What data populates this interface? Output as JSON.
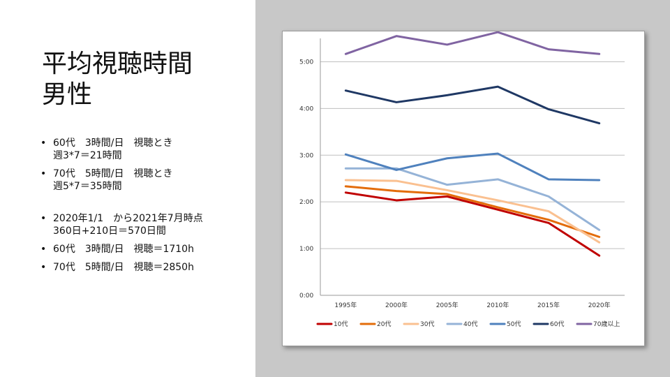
{
  "title": {
    "line1": "平均視聴時間",
    "line2": "男性"
  },
  "bullets": [
    {
      "line1": "60代　3時間/日　視聴とき",
      "line2": "週3*7＝21時間"
    },
    {
      "line1": "70代　5時間/日　視聴とき",
      "line2": "週5*7＝35時間"
    },
    {
      "line1": "2020年1/1　から2021年7月時点",
      "line2": "360日+210日＝570日間"
    },
    {
      "line1": "60代　3時間/日　視聴＝1710h",
      "line2": ""
    },
    {
      "line1": "70代　5時間/日　視聴＝2850h",
      "line2": ""
    }
  ],
  "colors": {
    "right_panel": "#c8c8c8",
    "gridline": "#bfbfbf"
  },
  "chart_data": {
    "type": "line",
    "categories": [
      "1995年",
      "2000年",
      "2005年",
      "2010年",
      "2015年",
      "2020年"
    ],
    "y_ticks": [
      "0:00",
      "1:00",
      "2:00",
      "3:00",
      "4:00",
      "5:00"
    ],
    "ylim_minutes": [
      0,
      330
    ],
    "grid": true,
    "legend_position": "bottom",
    "series": [
      {
        "name": "10代",
        "color": "#c00000",
        "values_minutes": [
          132,
          122,
          127,
          110,
          93,
          51
        ]
      },
      {
        "name": "20代",
        "color": "#e36c0a",
        "values_minutes": [
          140,
          134,
          130,
          113,
          97,
          75
        ]
      },
      {
        "name": "30代",
        "color": "#fac090",
        "values_minutes": [
          148,
          147,
          135,
          122,
          108,
          68
        ]
      },
      {
        "name": "40代",
        "color": "#95b3d7",
        "values_minutes": [
          163,
          163,
          142,
          149,
          127,
          84
        ]
      },
      {
        "name": "50代",
        "color": "#4f81bd",
        "values_minutes": [
          181,
          161,
          176,
          182,
          149,
          148
        ]
      },
      {
        "name": "60代",
        "color": "#1f3864",
        "values_minutes": [
          263,
          248,
          257,
          268,
          239,
          221
        ]
      },
      {
        "name": "70歳以上",
        "color": "#8064a2",
        "values_minutes": [
          310,
          333,
          322,
          338,
          316,
          310
        ]
      }
    ]
  }
}
